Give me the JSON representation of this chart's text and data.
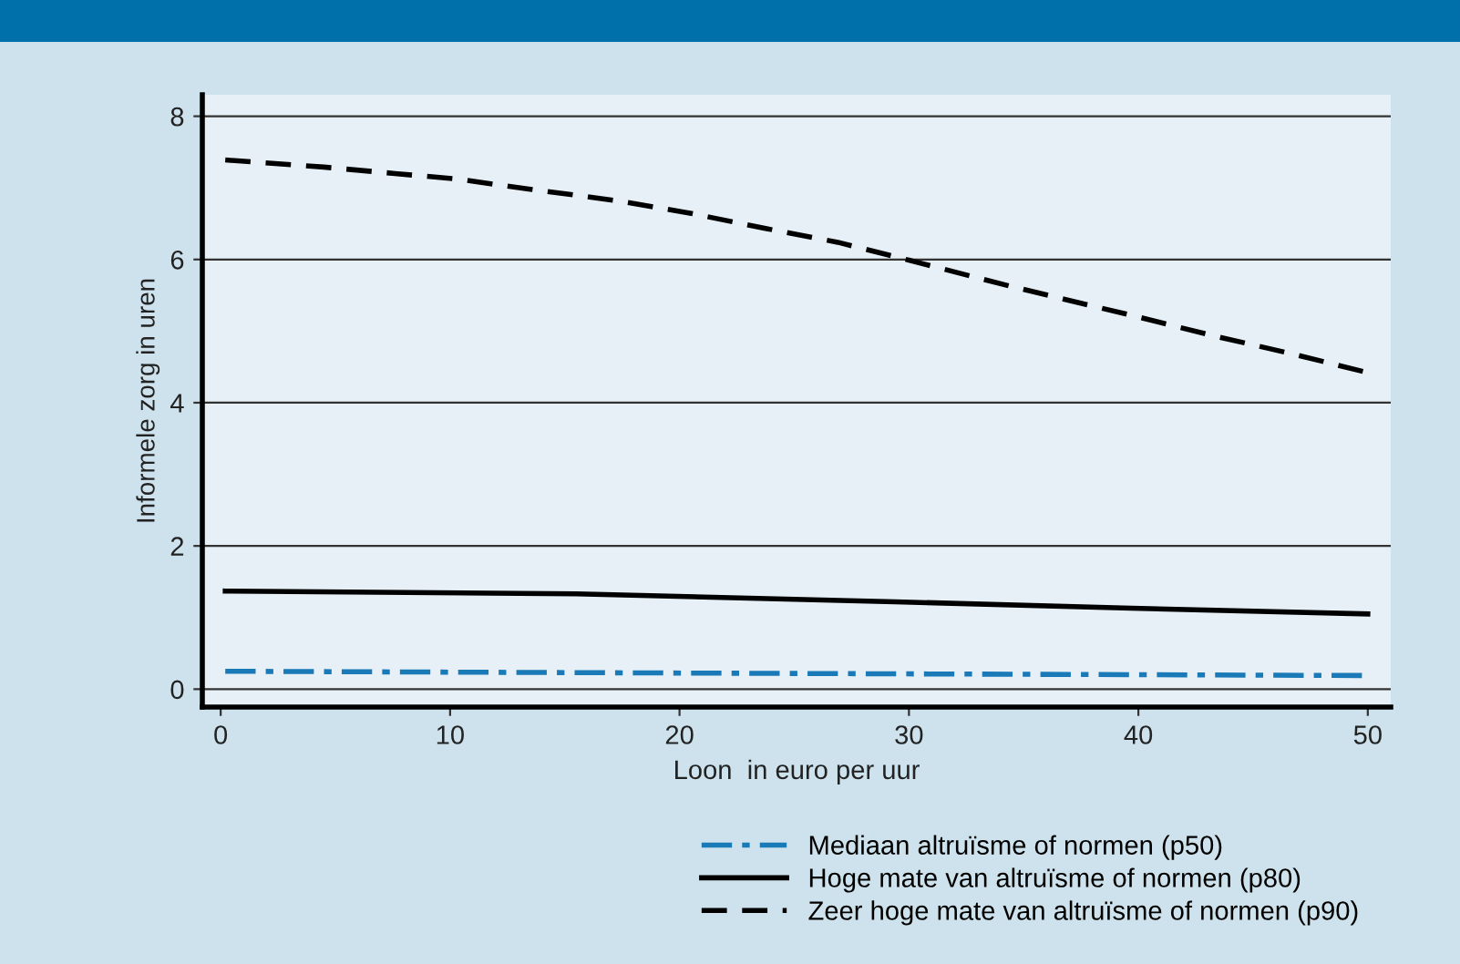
{
  "chart_data": {
    "type": "line",
    "xlabel": "Loon  in euro per uur",
    "ylabel": "Informele zorg in uren",
    "xlim": [
      -0.8,
      51
    ],
    "ylim": [
      -0.25,
      8.3
    ],
    "xticks": [
      0,
      10,
      20,
      30,
      40,
      50
    ],
    "yticks": [
      0,
      2,
      4,
      6,
      8
    ],
    "grid": "y",
    "legend": "bottom",
    "marker": "none",
    "series": [
      {
        "name": "Mediaan altruïsme of normen (p50)",
        "color": "#1a7ab8",
        "line_style": "dashdot",
        "x": [
          0.2,
          24.2,
          50
        ],
        "values": [
          0.25,
          0.22,
          0.19
        ]
      },
      {
        "name": "Hoge mate van altruïsme of normen (p80)",
        "color": "#000000",
        "line_style": "solid",
        "x": [
          0.2,
          15.5,
          29.4,
          39.7,
          50
        ],
        "values": [
          1.37,
          1.33,
          1.22,
          1.13,
          1.05
        ]
      },
      {
        "name": "Zeer hoge mate van altruïsme of normen (p90)",
        "color": "#000000",
        "line_style": "dashed",
        "x": [
          0.2,
          4.5,
          7.6,
          10.4,
          13.5,
          17.3,
          20.4,
          23.8,
          26.9,
          30,
          34.5,
          39.7,
          43.2,
          46.6,
          50
        ],
        "values": [
          7.39,
          7.29,
          7.2,
          7.12,
          6.98,
          6.82,
          6.65,
          6.43,
          6.24,
          5.99,
          5.62,
          5.22,
          4.94,
          4.69,
          4.42
        ]
      }
    ]
  }
}
